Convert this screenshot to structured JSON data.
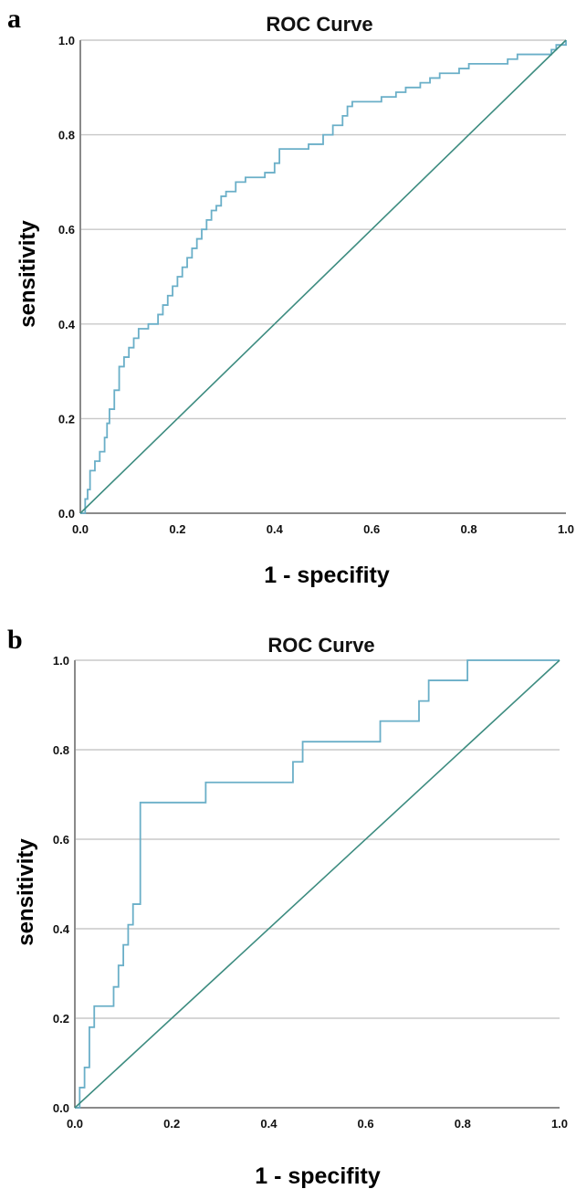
{
  "chart_data": [
    {
      "type": "line",
      "panel_label": "a",
      "title": "ROC Curve",
      "xlabel": "1 - specifity",
      "ylabel": "sensitivity",
      "xlim": [
        0,
        1
      ],
      "ylim": [
        0,
        1
      ],
      "x_ticks": [
        "0.0",
        "0.2",
        "0.4",
        "0.6",
        "0.8",
        "1.0"
      ],
      "y_ticks": [
        "0.0",
        "0.2",
        "0.4",
        "0.6",
        "0.8",
        "1.0"
      ],
      "grid": "horizontal",
      "colors": {
        "roc": "#6aafc8",
        "reference": "#3d8c80",
        "grid": "#c8c8c8",
        "axis": "#8a8a8a"
      },
      "series": [
        {
          "style": "step",
          "points": [
            [
              0,
              0
            ],
            [
              0.01,
              0.03
            ],
            [
              0.015,
              0.05
            ],
            [
              0.02,
              0.09
            ],
            [
              0.03,
              0.11
            ],
            [
              0.04,
              0.13
            ],
            [
              0.05,
              0.16
            ],
            [
              0.055,
              0.19
            ],
            [
              0.06,
              0.22
            ],
            [
              0.07,
              0.26
            ],
            [
              0.08,
              0.31
            ],
            [
              0.09,
              0.33
            ],
            [
              0.1,
              0.35
            ],
            [
              0.11,
              0.37
            ],
            [
              0.12,
              0.39
            ],
            [
              0.14,
              0.4
            ],
            [
              0.16,
              0.42
            ],
            [
              0.17,
              0.44
            ],
            [
              0.18,
              0.46
            ],
            [
              0.19,
              0.48
            ],
            [
              0.2,
              0.5
            ],
            [
              0.21,
              0.52
            ],
            [
              0.22,
              0.54
            ],
            [
              0.23,
              0.56
            ],
            [
              0.24,
              0.58
            ],
            [
              0.25,
              0.6
            ],
            [
              0.26,
              0.62
            ],
            [
              0.27,
              0.64
            ],
            [
              0.28,
              0.65
            ],
            [
              0.29,
              0.67
            ],
            [
              0.3,
              0.68
            ],
            [
              0.32,
              0.7
            ],
            [
              0.34,
              0.71
            ],
            [
              0.36,
              0.71
            ],
            [
              0.38,
              0.72
            ],
            [
              0.4,
              0.74
            ],
            [
              0.41,
              0.77
            ],
            [
              0.44,
              0.77
            ],
            [
              0.47,
              0.78
            ],
            [
              0.5,
              0.8
            ],
            [
              0.52,
              0.82
            ],
            [
              0.54,
              0.84
            ],
            [
              0.55,
              0.86
            ],
            [
              0.56,
              0.87
            ],
            [
              0.6,
              0.87
            ],
            [
              0.62,
              0.88
            ],
            [
              0.65,
              0.89
            ],
            [
              0.67,
              0.9
            ],
            [
              0.7,
              0.91
            ],
            [
              0.72,
              0.92
            ],
            [
              0.74,
              0.93
            ],
            [
              0.78,
              0.94
            ],
            [
              0.8,
              0.95
            ],
            [
              0.88,
              0.96
            ],
            [
              0.9,
              0.97
            ],
            [
              0.97,
              0.98
            ],
            [
              0.98,
              0.99
            ],
            [
              1.0,
              1.0
            ]
          ]
        },
        {
          "style": "line",
          "points": [
            [
              0,
              0
            ],
            [
              1,
              1
            ]
          ]
        }
      ]
    },
    {
      "type": "line",
      "panel_label": "b",
      "title": "ROC Curve",
      "xlabel": "1 - specifity",
      "ylabel": "sensitivity",
      "xlim": [
        0,
        1
      ],
      "ylim": [
        0,
        1
      ],
      "x_ticks": [
        "0.0",
        "0.2",
        "0.4",
        "0.6",
        "0.8",
        "1.0"
      ],
      "y_ticks": [
        "0.0",
        "0.2",
        "0.4",
        "0.6",
        "0.8",
        "1.0"
      ],
      "grid": "horizontal",
      "colors": {
        "roc": "#6aafc8",
        "reference": "#3d8c80",
        "grid": "#c8c8c8",
        "axis": "#8a8a8a"
      },
      "series": [
        {
          "style": "step",
          "points": [
            [
              0,
              0
            ],
            [
              0.01,
              0.045
            ],
            [
              0.02,
              0.09
            ],
            [
              0.03,
              0.18
            ],
            [
              0.04,
              0.227
            ],
            [
              0.08,
              0.27
            ],
            [
              0.09,
              0.318
            ],
            [
              0.1,
              0.364
            ],
            [
              0.11,
              0.409
            ],
            [
              0.12,
              0.455
            ],
            [
              0.135,
              0.682
            ],
            [
              0.27,
              0.727
            ],
            [
              0.45,
              0.773
            ],
            [
              0.47,
              0.818
            ],
            [
              0.63,
              0.864
            ],
            [
              0.71,
              0.909
            ],
            [
              0.73,
              0.955
            ],
            [
              0.81,
              1.0
            ],
            [
              1.0,
              1.0
            ]
          ]
        },
        {
          "style": "line",
          "points": [
            [
              0,
              0
            ],
            [
              1,
              1
            ]
          ]
        }
      ]
    }
  ]
}
